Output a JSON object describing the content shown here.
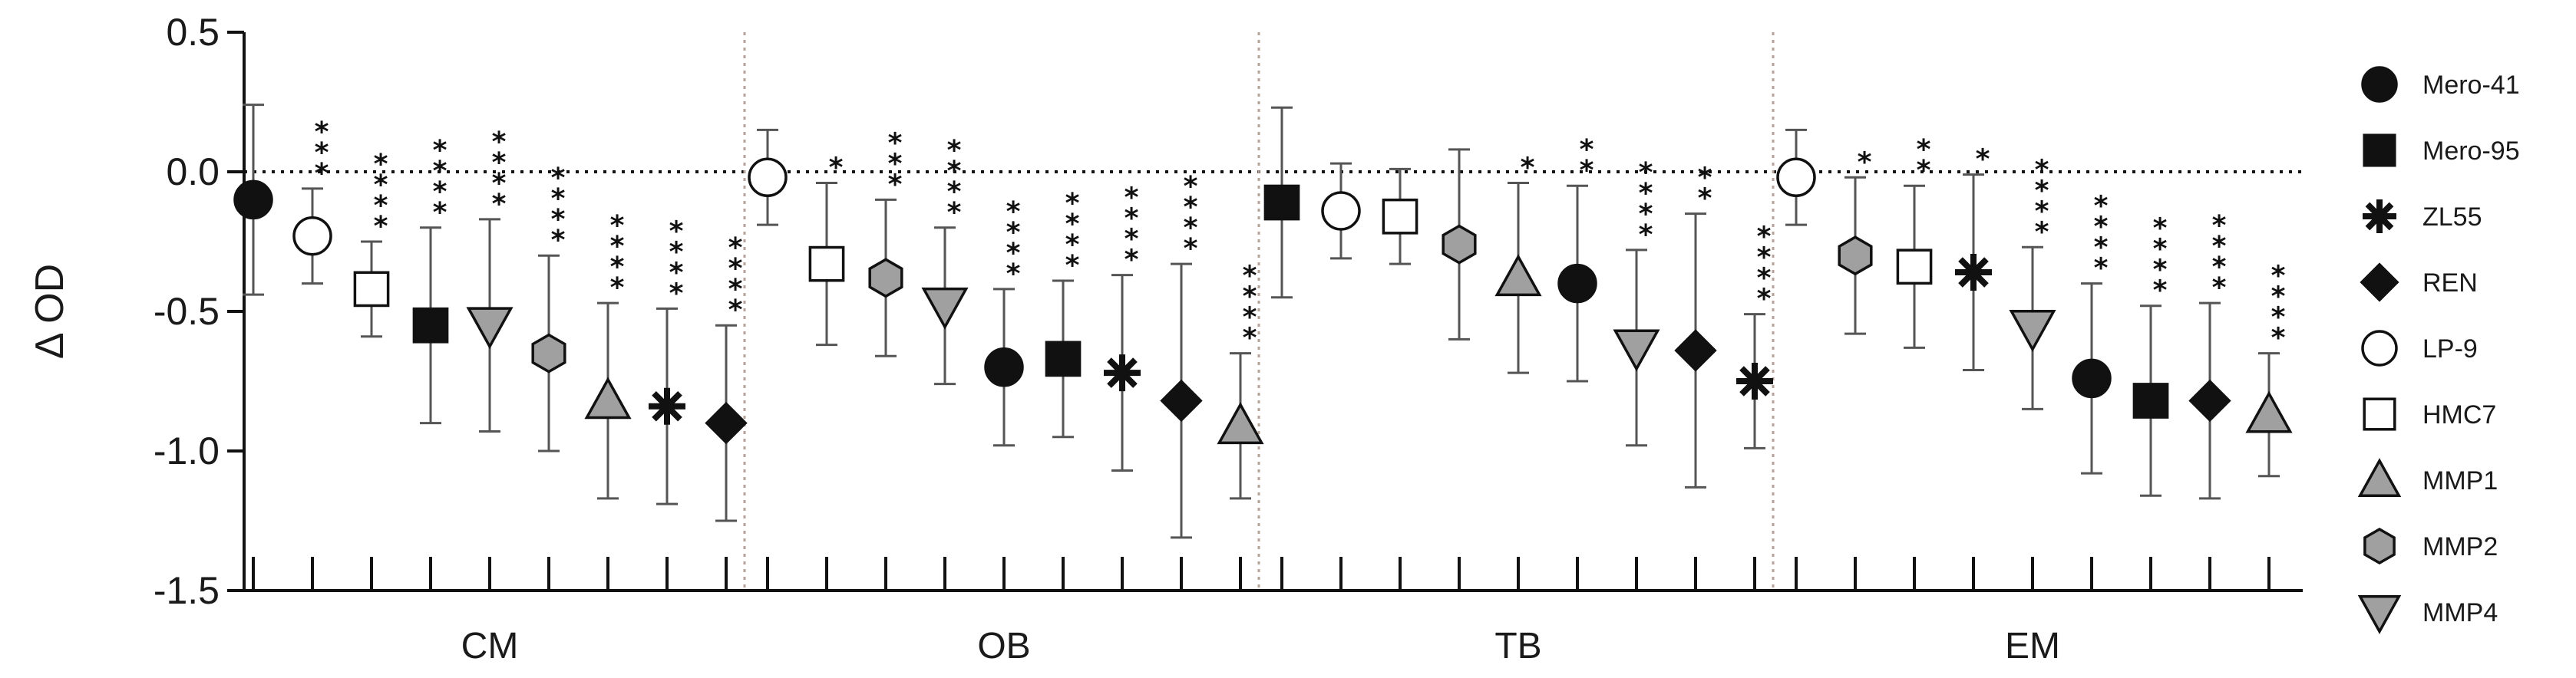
{
  "chart_data": {
    "type": "scatter",
    "ylabel": "Δ OD",
    "ylim": [
      -1.5,
      0.5
    ],
    "yticks": [
      "0.5",
      "0.0",
      "-0.5",
      "-1.0",
      "-1.5"
    ],
    "reference_line": 0,
    "legend_placement": "right",
    "legend": [
      {
        "name": "Mero-41",
        "shape": "circle",
        "fill": "#111111"
      },
      {
        "name": "Mero-95",
        "shape": "square",
        "fill": "#111111"
      },
      {
        "name": "ZL55",
        "shape": "asterisk",
        "fill": "#111111"
      },
      {
        "name": "REN",
        "shape": "diamond",
        "fill": "#111111"
      },
      {
        "name": "LP-9",
        "shape": "circle",
        "fill": "#ffffff"
      },
      {
        "name": "HMC7",
        "shape": "square",
        "fill": "#ffffff"
      },
      {
        "name": "MMP1",
        "shape": "triangle-up",
        "fill": "#a0a0a0"
      },
      {
        "name": "MMP2",
        "shape": "hexagon",
        "fill": "#a0a0a0"
      },
      {
        "name": "MMP4",
        "shape": "triangle-down",
        "fill": "#a0a0a0"
      }
    ],
    "groups": [
      {
        "label": "CM",
        "points": [
          {
            "series": "Mero-41",
            "y": -0.1,
            "err": 0.34,
            "sig": ""
          },
          {
            "series": "LP-9",
            "y": -0.23,
            "err": 0.17,
            "sig": "***"
          },
          {
            "series": "HMC7",
            "y": -0.42,
            "err": 0.17,
            "sig": "****"
          },
          {
            "series": "Mero-95",
            "y": -0.55,
            "err": 0.35,
            "sig": "****"
          },
          {
            "series": "MMP4",
            "y": -0.55,
            "err": 0.38,
            "sig": "****"
          },
          {
            "series": "MMP2",
            "y": -0.65,
            "err": 0.35,
            "sig": "****"
          },
          {
            "series": "MMP1",
            "y": -0.82,
            "err": 0.35,
            "sig": "****"
          },
          {
            "series": "ZL55",
            "y": -0.84,
            "err": 0.35,
            "sig": "****"
          },
          {
            "series": "REN",
            "y": -0.9,
            "err": 0.35,
            "sig": "****"
          }
        ]
      },
      {
        "label": "OB",
        "points": [
          {
            "series": "LP-9",
            "y": -0.02,
            "err": 0.17,
            "sig": ""
          },
          {
            "series": "HMC7",
            "y": -0.33,
            "err": 0.29,
            "sig": "*"
          },
          {
            "series": "MMP2",
            "y": -0.38,
            "err": 0.28,
            "sig": "***"
          },
          {
            "series": "MMP4",
            "y": -0.48,
            "err": 0.28,
            "sig": "****"
          },
          {
            "series": "Mero-41",
            "y": -0.7,
            "err": 0.28,
            "sig": "****"
          },
          {
            "series": "Mero-95",
            "y": -0.67,
            "err": 0.28,
            "sig": "****"
          },
          {
            "series": "ZL55",
            "y": -0.72,
            "err": 0.35,
            "sig": "****"
          },
          {
            "series": "REN",
            "y": -0.82,
            "err": 0.49,
            "sig": "****"
          },
          {
            "series": "MMP1",
            "y": -0.91,
            "err": 0.26,
            "sig": "****"
          }
        ]
      },
      {
        "label": "TB",
        "points": [
          {
            "series": "Mero-95",
            "y": -0.11,
            "err": 0.34,
            "sig": ""
          },
          {
            "series": "LP-9",
            "y": -0.14,
            "err": 0.17,
            "sig": ""
          },
          {
            "series": "HMC7",
            "y": -0.16,
            "err": 0.17,
            "sig": ""
          },
          {
            "series": "MMP2",
            "y": -0.26,
            "err": 0.34,
            "sig": ""
          },
          {
            "series": "MMP1",
            "y": -0.38,
            "err": 0.34,
            "sig": "*"
          },
          {
            "series": "Mero-41",
            "y": -0.4,
            "err": 0.35,
            "sig": "**"
          },
          {
            "series": "MMP4",
            "y": -0.63,
            "err": 0.35,
            "sig": "****"
          },
          {
            "series": "REN",
            "y": -0.64,
            "err": 0.49,
            "sig": "**"
          },
          {
            "series": "ZL55",
            "y": -0.75,
            "err": 0.24,
            "sig": "****"
          }
        ]
      },
      {
        "label": "EM",
        "points": [
          {
            "series": "LP-9",
            "y": -0.02,
            "err": 0.17,
            "sig": ""
          },
          {
            "series": "MMP2",
            "y": -0.3,
            "err": 0.28,
            "sig": "*"
          },
          {
            "series": "HMC7",
            "y": -0.34,
            "err": 0.29,
            "sig": "**"
          },
          {
            "series": "ZL55",
            "y": -0.36,
            "err": 0.35,
            "sig": "*"
          },
          {
            "series": "MMP4",
            "y": -0.56,
            "err": 0.29,
            "sig": "****"
          },
          {
            "series": "Mero-41",
            "y": -0.74,
            "err": 0.34,
            "sig": "****"
          },
          {
            "series": "Mero-95",
            "y": -0.82,
            "err": 0.34,
            "sig": "****"
          },
          {
            "series": "REN",
            "y": -0.82,
            "err": 0.35,
            "sig": "****"
          },
          {
            "series": "MMP1",
            "y": -0.87,
            "err": 0.22,
            "sig": "****"
          }
        ]
      }
    ]
  }
}
